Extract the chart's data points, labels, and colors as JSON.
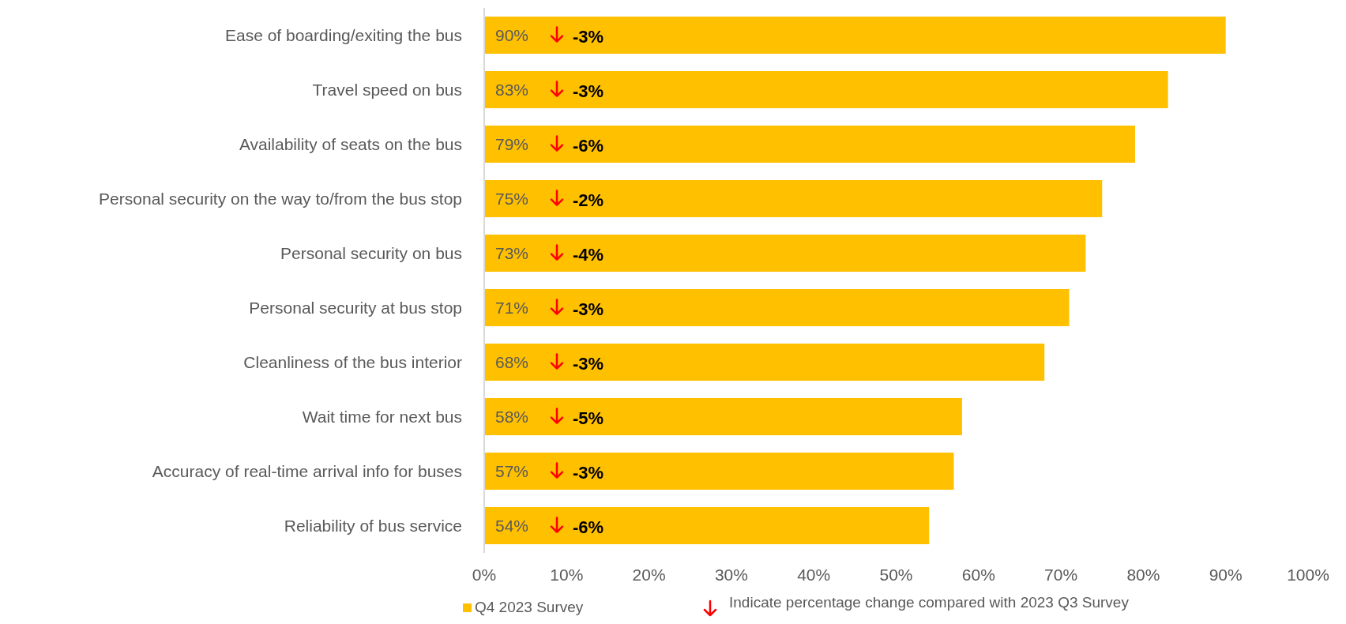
{
  "chart_data": {
    "type": "bar",
    "orientation": "horizontal",
    "categories": [
      "Ease of boarding/exiting the bus",
      "Travel speed on bus",
      "Availability of seats on the bus",
      "Personal security on the way to/from the bus stop",
      "Personal security on bus",
      "Personal security at bus stop",
      "Cleanliness of the bus interior",
      "Wait time for next bus",
      "Accuracy of real-time arrival info for buses",
      "Reliability of bus service"
    ],
    "series": [
      {
        "name": "Q4 2023 Survey",
        "color": "#ffc000",
        "values": [
          90,
          83,
          79,
          75,
          73,
          71,
          68,
          58,
          57,
          54
        ],
        "value_labels": [
          "90%",
          "83%",
          "79%",
          "75%",
          "73%",
          "71%",
          "68%",
          "58%",
          "57%",
          "54%"
        ]
      }
    ],
    "xlim": [
      0,
      100
    ],
    "xticks": [
      {
        "value": 0,
        "label": "0%"
      },
      {
        "value": 10,
        "label": "10%"
      },
      {
        "value": 20,
        "label": "20%"
      },
      {
        "value": 30,
        "label": "30%"
      },
      {
        "value": 40,
        "label": "40%"
      },
      {
        "value": 50,
        "label": "50%"
      },
      {
        "value": 60,
        "label": "60%"
      },
      {
        "value": 70,
        "label": "70%"
      },
      {
        "value": 80,
        "label": "80%"
      },
      {
        "value": 90,
        "label": "90%"
      },
      {
        "value": 100,
        "label": "100%"
      }
    ],
    "legend": "bottom",
    "annotations": [
      "-3%",
      "-3%",
      "-6%",
      "-2%",
      "-4%",
      "-3%",
      "-3%",
      "-5%",
      "-3%",
      "-6%",
      "Indicate percentage change compared with 2023 Q3 Survey"
    ]
  }
}
